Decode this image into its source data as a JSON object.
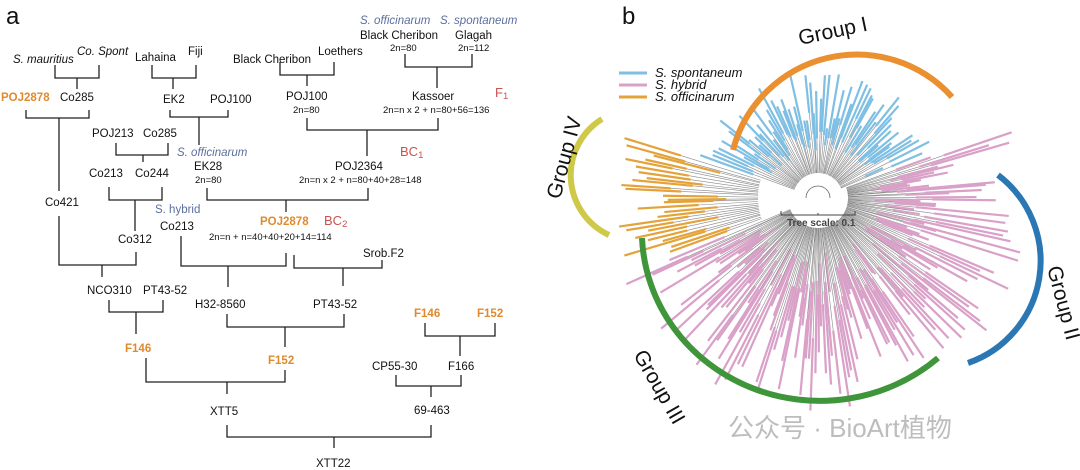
{
  "panel_a": {
    "label": "a",
    "nodes": {
      "s_officinarum_top": "S. officinarum",
      "s_spontaneum_top": "S. spontaneum",
      "black_cheribon_1": "Black Cheribon",
      "black_cheribon_1_2n": "2n=80",
      "glagah": "Glagah",
      "glagah_2n": "2n=112",
      "s_mauritius": "S. mauritius",
      "co_spont": "Co. Spont",
      "lahaina": "Lahaina",
      "fiji": "Fiji",
      "black_cheribon_2": "Black Cheribon",
      "loethers": "Loethers",
      "poj2878_top": "POJ2878",
      "co285_top": "Co285",
      "ek2": "EK2",
      "poj100_a": "POJ100",
      "poj100_b": "POJ100",
      "poj100_b_2n": "2n=80",
      "kassoer": "Kassoer",
      "kassoer_2n": "2n=n x 2 + n=80+56=136",
      "poj213": "POJ213",
      "co285_mid": "Co285",
      "s_officinarum_mid": "S. officinarum",
      "co213_a": "Co213",
      "co244": "Co244",
      "ek28": "EK28",
      "ek28_2n": "2n=80",
      "poj2364": "POJ2364",
      "poj2364_2n": "2n=n x 2 + n=80+40+28=148",
      "co421": "Co421",
      "s_hybrid": "S. hybrid",
      "co213_b": "Co213",
      "poj2878_mid": "POJ2878",
      "poj2878_mid_2n": "2n=n  + n=40+40+20+14=114",
      "co312": "Co312",
      "srob_f2": "Srob.F2",
      "nco310": "NCO310",
      "pt43_52_a": "PT43-52",
      "h32_8560": "H32-8560",
      "pt43_52_b": "PT43-52",
      "f146_a": "F146",
      "f152_a": "F152",
      "f146_b": "F146",
      "f152_b": "F152",
      "cp55_30": "CP55-30",
      "f166": "F166",
      "xtt5": "XTT5",
      "69_463": "69-463",
      "xtt22": "XTT22"
    },
    "generations": {
      "f1": {
        "letter": "F",
        "sub": "1"
      },
      "bc1": {
        "letter": "BC",
        "sub": "1"
      },
      "bc2": {
        "letter": "BC",
        "sub": "2"
      }
    },
    "colors": {
      "highlight": "#e08a2e",
      "species": "#5b6f9e",
      "generation": "#c9524e"
    }
  },
  "panel_b": {
    "label": "b",
    "legend": [
      {
        "label": "S. spontaneum",
        "color": "#7fbfe3"
      },
      {
        "label": "S. hybrid",
        "color": "#d9a0c8"
      },
      {
        "label": "S. officinarum",
        "color": "#e3a33a"
      }
    ],
    "groups": [
      {
        "label": "Group I",
        "color": "#ea9030"
      },
      {
        "label": "Group II",
        "color": "#2a77b4"
      },
      {
        "label": "Group III",
        "color": "#3f953a"
      },
      {
        "label": "Group IV",
        "color": "#cfc94a"
      }
    ],
    "tree_scale": {
      "label": "Tree scale: 0.1",
      "value": 0.1
    },
    "watermark": "公众号 · BioArt植物"
  }
}
